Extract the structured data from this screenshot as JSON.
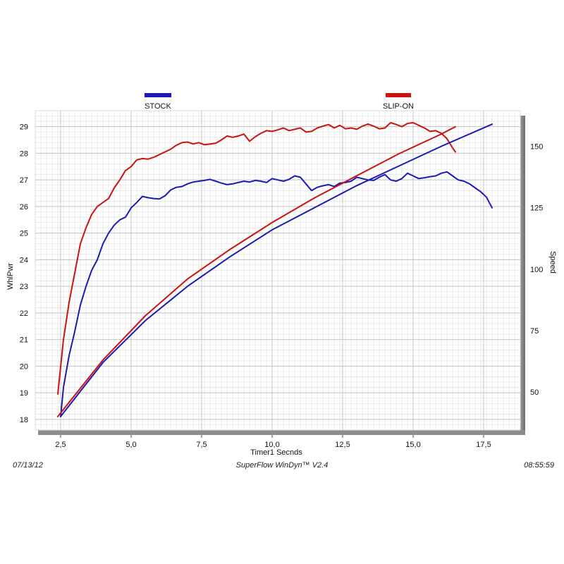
{
  "chart_data": {
    "type": "line",
    "xlabel": "Timer1 Secnds",
    "ylabel_left": "WhlPwr",
    "ylabel_right": "Speed",
    "xlim": [
      1.6,
      18.8
    ],
    "ylim_left": [
      17.6,
      29.6
    ],
    "ylim_right": [
      34.5,
      164.5
    ],
    "x_ticks": [
      2.5,
      5.0,
      7.5,
      10.0,
      12.5,
      15.0,
      17.5
    ],
    "x_tick_labels": [
      "2,5",
      "5,0",
      "7,5",
      "10,0",
      "12,5",
      "15,0",
      "17,5"
    ],
    "y_left_ticks": [
      18,
      19,
      20,
      21,
      22,
      23,
      24,
      25,
      26,
      27,
      28,
      29
    ],
    "y_right_ticks": [
      50,
      75,
      100,
      125,
      150
    ],
    "grid": true,
    "legend_position": "top",
    "series": [
      {
        "name": "STOCK",
        "color": "#1a1ab4",
        "axis": "left",
        "x": [
          2.5,
          2.6,
          2.8,
          3.0,
          3.2,
          3.4,
          3.6,
          3.8,
          4.0,
          4.2,
          4.4,
          4.6,
          4.8,
          5.0,
          5.2,
          5.4,
          5.6,
          5.8,
          6.0,
          6.2,
          6.4,
          6.6,
          6.8,
          7.0,
          7.2,
          7.4,
          7.6,
          7.8,
          8.0,
          8.2,
          8.4,
          8.6,
          8.8,
          9.0,
          9.2,
          9.4,
          9.6,
          9.8,
          10.0,
          10.2,
          10.4,
          10.6,
          10.8,
          11.0,
          11.2,
          11.4,
          11.6,
          11.8,
          12.0,
          12.2,
          12.4,
          12.6,
          12.8,
          13.0,
          13.2,
          13.4,
          13.6,
          13.8,
          14.0,
          14.2,
          14.4,
          14.6,
          14.8,
          15.0,
          15.2,
          15.4,
          15.6,
          15.8,
          16.0,
          16.2,
          16.4,
          16.6,
          16.8,
          17.0,
          17.2,
          17.4,
          17.6,
          17.8
        ],
        "values": [
          18.1,
          19.2,
          20.4,
          21.3,
          22.3,
          23.0,
          23.6,
          24.0,
          24.6,
          25.0,
          25.3,
          25.5,
          25.6,
          25.95,
          26.15,
          26.38,
          26.33,
          26.3,
          26.28,
          26.4,
          26.62,
          26.72,
          26.75,
          26.85,
          26.92,
          26.95,
          26.98,
          27.02,
          26.95,
          26.88,
          26.82,
          26.85,
          26.9,
          26.95,
          26.92,
          26.98,
          26.95,
          26.9,
          27.05,
          27.0,
          26.95,
          27.02,
          27.15,
          27.1,
          26.85,
          26.6,
          26.72,
          26.78,
          26.82,
          26.75,
          26.88,
          26.9,
          26.95,
          27.1,
          27.05,
          27.0,
          26.98,
          27.1,
          27.2,
          27.0,
          26.95,
          27.05,
          27.25,
          27.15,
          27.05,
          27.08,
          27.12,
          27.15,
          27.25,
          27.3,
          27.15,
          27.0,
          26.95,
          26.85,
          26.7,
          26.55,
          26.35,
          25.95
        ]
      },
      {
        "name": "SLIP-ON",
        "color": "#cc1111",
        "axis": "left",
        "x": [
          2.4,
          2.6,
          2.8,
          3.0,
          3.2,
          3.4,
          3.6,
          3.8,
          4.0,
          4.2,
          4.4,
          4.6,
          4.8,
          5.0,
          5.2,
          5.4,
          5.6,
          5.8,
          6.0,
          6.2,
          6.4,
          6.6,
          6.8,
          7.0,
          7.2,
          7.4,
          7.6,
          7.8,
          8.0,
          8.2,
          8.4,
          8.6,
          8.8,
          9.0,
          9.2,
          9.4,
          9.6,
          9.8,
          10.0,
          10.2,
          10.4,
          10.6,
          10.8,
          11.0,
          11.2,
          11.4,
          11.6,
          11.8,
          12.0,
          12.2,
          12.4,
          12.6,
          12.8,
          13.0,
          13.2,
          13.4,
          13.6,
          13.8,
          14.0,
          14.2,
          14.4,
          14.6,
          14.8,
          15.0,
          15.2,
          15.4,
          15.6,
          15.8,
          16.0,
          16.2,
          16.4,
          16.5
        ],
        "values": [
          18.95,
          21.0,
          22.4,
          23.5,
          24.6,
          25.2,
          25.7,
          26.0,
          26.15,
          26.3,
          26.7,
          27.0,
          27.35,
          27.5,
          27.75,
          27.8,
          27.78,
          27.85,
          27.95,
          28.05,
          28.15,
          28.3,
          28.4,
          28.42,
          28.35,
          28.4,
          28.32,
          28.35,
          28.38,
          28.5,
          28.65,
          28.6,
          28.65,
          28.72,
          28.45,
          28.62,
          28.75,
          28.85,
          28.82,
          28.88,
          28.95,
          28.85,
          28.9,
          28.95,
          28.8,
          28.82,
          28.95,
          29.02,
          29.08,
          28.95,
          29.05,
          28.92,
          28.95,
          28.9,
          29.02,
          29.1,
          29.02,
          28.92,
          28.95,
          29.15,
          29.08,
          29.0,
          29.12,
          29.15,
          29.05,
          28.95,
          28.82,
          28.85,
          28.75,
          28.55,
          28.2,
          28.05
        ]
      },
      {
        "name": "STOCK",
        "color": "#1a1ab4",
        "axis": "right",
        "x": [
          2.5,
          4.0,
          5.5,
          7.0,
          8.5,
          10.0,
          11.5,
          13.0,
          14.5,
          16.0,
          17.8
        ],
        "values": [
          40,
          62,
          79,
          93,
          105,
          116,
          125,
          134,
          142,
          150,
          159
        ]
      },
      {
        "name": "SLIP-ON",
        "color": "#cc1111",
        "axis": "right",
        "x": [
          2.4,
          4.0,
          5.5,
          7.0,
          8.5,
          10.0,
          11.5,
          13.0,
          14.5,
          16.0,
          16.5
        ],
        "values": [
          40,
          63,
          81,
          96,
          108,
          119,
          129,
          138,
          147,
          155,
          158
        ]
      }
    ]
  },
  "legend": [
    {
      "name": "STOCK",
      "color": "#1a1ab4"
    },
    {
      "name": "SLIP-ON",
      "color": "#cc1111"
    }
  ],
  "footer": {
    "date": "07/13/12",
    "software": "SuperFlow WinDyn™  V2.4",
    "time": "08:55:59"
  }
}
